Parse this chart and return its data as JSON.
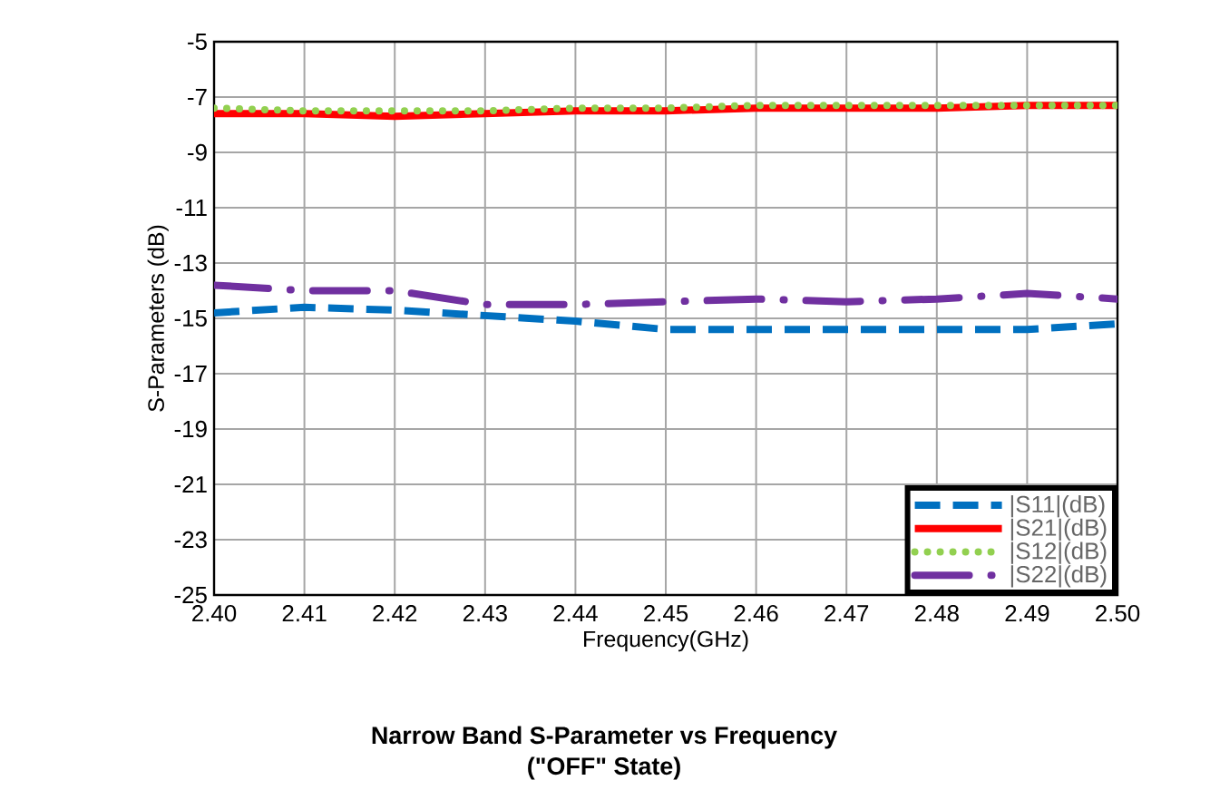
{
  "chart_data": {
    "type": "line",
    "title": "Narrow Band S-Parameter vs Frequency\n(\"OFF\" State)",
    "xlabel": "Frequency(GHz)",
    "ylabel": "S-Parameters (dB)",
    "x": [
      2.4,
      2.41,
      2.42,
      2.43,
      2.44,
      2.45,
      2.46,
      2.47,
      2.48,
      2.49,
      2.5
    ],
    "series": [
      {
        "name": "|S11|(dB)",
        "color": "#0070c0",
        "line_style": "dashed",
        "values": [
          -14.8,
          -14.6,
          -14.7,
          -14.9,
          -15.1,
          -15.4,
          -15.4,
          -15.4,
          -15.4,
          -15.4,
          -15.2
        ]
      },
      {
        "name": "|S21|(dB)",
        "color": "#ff0000",
        "line_style": "solid",
        "values": [
          -7.6,
          -7.6,
          -7.7,
          -7.6,
          -7.5,
          -7.5,
          -7.4,
          -7.4,
          -7.4,
          -7.3,
          -7.3
        ]
      },
      {
        "name": "|S12|(dB)",
        "color": "#92d050",
        "line_style": "dotted",
        "values": [
          -7.4,
          -7.5,
          -7.5,
          -7.5,
          -7.4,
          -7.4,
          -7.3,
          -7.3,
          -7.3,
          -7.3,
          -7.3
        ]
      },
      {
        "name": "|S22|(dB)",
        "color": "#7030a0",
        "line_style": "dashdot",
        "values": [
          -13.8,
          -14.0,
          -14.0,
          -14.5,
          -14.5,
          -14.4,
          -14.3,
          -14.4,
          -14.3,
          -14.1,
          -14.3
        ]
      }
    ],
    "xlim": [
      2.4,
      2.5
    ],
    "ylim": [
      -25,
      -5
    ],
    "xticks": [
      {
        "value": 2.4,
        "label": "2.40"
      },
      2.41,
      2.42,
      2.43,
      2.44,
      2.45,
      2.46,
      2.47,
      2.48,
      2.49,
      {
        "value": 2.5,
        "label": "2.50"
      }
    ],
    "yticks": [
      -25,
      -23,
      -21,
      -19,
      -17,
      -15,
      -13,
      -11,
      -9,
      -7,
      -5
    ],
    "grid": true,
    "legend": "bottom right",
    "marker": "none"
  }
}
